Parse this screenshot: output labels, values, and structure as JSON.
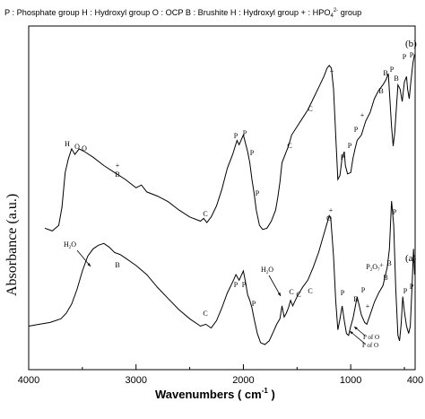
{
  "legend_text": "P : Phosphate group    H : Hydroxyl group    O : OCP    B : Brushite    H : Hydroxyl group + : HPO",
  "legend_sub": "4",
  "legend_sup": "2-",
  "legend_tail": " group",
  "chart_data": {
    "type": "line",
    "xlabel": "Wavenumbers ( cm",
    "xlabel_sup": "-1",
    "xlabel_tail": " )",
    "ylabel": "Absorbance (a.u.)",
    "xlim": [
      4000,
      400
    ],
    "x_ticks": [
      4000,
      3000,
      2000,
      1000,
      400
    ],
    "x_tick_labels": [
      "4000",
      "3000",
      "2000",
      "1000",
      "400"
    ],
    "series": [
      {
        "name": "(b)",
        "points": [
          [
            3850,
            0.05
          ],
          [
            3780,
            0.03
          ],
          [
            3720,
            0.07
          ],
          [
            3690,
            0.2
          ],
          [
            3660,
            0.45
          ],
          [
            3630,
            0.55
          ],
          [
            3600,
            0.62
          ],
          [
            3570,
            0.58
          ],
          [
            3530,
            0.62
          ],
          [
            3480,
            0.6
          ],
          [
            3400,
            0.56
          ],
          [
            3300,
            0.5
          ],
          [
            3200,
            0.45
          ],
          [
            3100,
            0.4
          ],
          [
            3000,
            0.34
          ],
          [
            2950,
            0.36
          ],
          [
            2900,
            0.31
          ],
          [
            2800,
            0.28
          ],
          [
            2700,
            0.24
          ],
          [
            2600,
            0.18
          ],
          [
            2500,
            0.13
          ],
          [
            2400,
            0.1
          ],
          [
            2370,
            0.12
          ],
          [
            2340,
            0.09
          ],
          [
            2300,
            0.13
          ],
          [
            2250,
            0.21
          ],
          [
            2200,
            0.33
          ],
          [
            2150,
            0.48
          ],
          [
            2100,
            0.58
          ],
          [
            2060,
            0.68
          ],
          [
            2040,
            0.65
          ],
          [
            2000,
            0.72
          ],
          [
            1980,
            0.66
          ],
          [
            1960,
            0.6
          ],
          [
            1940,
            0.52
          ],
          [
            1920,
            0.4
          ],
          [
            1900,
            0.3
          ],
          [
            1880,
            0.18
          ],
          [
            1850,
            0.07
          ],
          [
            1820,
            0.04
          ],
          [
            1780,
            0.05
          ],
          [
            1740,
            0.1
          ],
          [
            1700,
            0.18
          ],
          [
            1680,
            0.27
          ],
          [
            1660,
            0.38
          ],
          [
            1640,
            0.52
          ],
          [
            1610,
            0.58
          ],
          [
            1580,
            0.64
          ],
          [
            1550,
            0.72
          ],
          [
            1500,
            0.78
          ],
          [
            1450,
            0.84
          ],
          [
            1400,
            0.9
          ],
          [
            1350,
            0.98
          ],
          [
            1300,
            1.06
          ],
          [
            1250,
            1.14
          ],
          [
            1220,
            1.2
          ],
          [
            1200,
            1.22
          ],
          [
            1180,
            1.2
          ],
          [
            1160,
            1.05
          ],
          [
            1140,
            0.72
          ],
          [
            1120,
            0.4
          ],
          [
            1100,
            0.43
          ],
          [
            1080,
            0.56
          ],
          [
            1060,
            0.6
          ],
          [
            1050,
            0.5
          ],
          [
            1030,
            0.44
          ],
          [
            1000,
            0.45
          ],
          [
            980,
            0.55
          ],
          [
            960,
            0.62
          ],
          [
            940,
            0.68
          ],
          [
            900,
            0.72
          ],
          [
            860,
            0.82
          ],
          [
            820,
            0.88
          ],
          [
            780,
            0.98
          ],
          [
            740,
            1.04
          ],
          [
            700,
            1.08
          ],
          [
            670,
            1.12
          ],
          [
            650,
            1.16
          ],
          [
            620,
            0.78
          ],
          [
            605,
            0.64
          ],
          [
            590,
            0.74
          ],
          [
            560,
            1.08
          ],
          [
            540,
            1.05
          ],
          [
            520,
            0.96
          ],
          [
            500,
            1.1
          ],
          [
            480,
            1.14
          ],
          [
            470,
            1.05
          ],
          [
            455,
            0.98
          ],
          [
            440,
            1.1
          ],
          [
            420,
            1.24
          ],
          [
            405,
            1.3
          ]
        ]
      },
      {
        "name": "(a)",
        "points": [
          [
            4000,
            0.1
          ],
          [
            3900,
            0.11
          ],
          [
            3800,
            0.12
          ],
          [
            3700,
            0.14
          ],
          [
            3650,
            0.17
          ],
          [
            3600,
            0.22
          ],
          [
            3550,
            0.3
          ],
          [
            3500,
            0.4
          ],
          [
            3450,
            0.48
          ],
          [
            3400,
            0.52
          ],
          [
            3350,
            0.54
          ],
          [
            3300,
            0.55
          ],
          [
            3250,
            0.53
          ],
          [
            3200,
            0.5
          ],
          [
            3150,
            0.49
          ],
          [
            3100,
            0.47
          ],
          [
            3000,
            0.43
          ],
          [
            2900,
            0.38
          ],
          [
            2800,
            0.31
          ],
          [
            2700,
            0.25
          ],
          [
            2600,
            0.19
          ],
          [
            2500,
            0.14
          ],
          [
            2400,
            0.1
          ],
          [
            2350,
            0.11
          ],
          [
            2300,
            0.09
          ],
          [
            2250,
            0.13
          ],
          [
            2200,
            0.2
          ],
          [
            2150,
            0.28
          ],
          [
            2100,
            0.34
          ],
          [
            2070,
            0.38
          ],
          [
            2040,
            0.35
          ],
          [
            2000,
            0.4
          ],
          [
            1980,
            0.34
          ],
          [
            1960,
            0.27
          ],
          [
            1940,
            0.24
          ],
          [
            1920,
            0.2
          ],
          [
            1900,
            0.14
          ],
          [
            1870,
            0.06
          ],
          [
            1840,
            0.01
          ],
          [
            1800,
            0.0
          ],
          [
            1760,
            0.02
          ],
          [
            1720,
            0.07
          ],
          [
            1690,
            0.11
          ],
          [
            1660,
            0.14
          ],
          [
            1640,
            0.21
          ],
          [
            1620,
            0.15
          ],
          [
            1600,
            0.17
          ],
          [
            1580,
            0.2
          ],
          [
            1560,
            0.24
          ],
          [
            1540,
            0.21
          ],
          [
            1500,
            0.26
          ],
          [
            1450,
            0.31
          ],
          [
            1400,
            0.35
          ],
          [
            1350,
            0.42
          ],
          [
            1300,
            0.5
          ],
          [
            1250,
            0.6
          ],
          [
            1220,
            0.66
          ],
          [
            1200,
            0.7
          ],
          [
            1185,
            0.68
          ],
          [
            1160,
            0.48
          ],
          [
            1140,
            0.24
          ],
          [
            1120,
            0.08
          ],
          [
            1100,
            0.14
          ],
          [
            1080,
            0.21
          ],
          [
            1060,
            0.13
          ],
          [
            1040,
            0.06
          ],
          [
            1020,
            0.05
          ],
          [
            1000,
            0.1
          ],
          [
            980,
            0.14
          ],
          [
            960,
            0.2
          ],
          [
            940,
            0.26
          ],
          [
            920,
            0.21
          ],
          [
            900,
            0.16
          ],
          [
            870,
            0.12
          ],
          [
            850,
            0.11
          ],
          [
            820,
            0.16
          ],
          [
            780,
            0.23
          ],
          [
            740,
            0.28
          ],
          [
            700,
            0.32
          ],
          [
            660,
            0.42
          ],
          [
            640,
            0.52
          ],
          [
            620,
            0.78
          ],
          [
            600,
            0.65
          ],
          [
            580,
            0.3
          ],
          [
            560,
            0.05
          ],
          [
            545,
            0.02
          ],
          [
            530,
            0.11
          ],
          [
            515,
            0.26
          ],
          [
            500,
            0.18
          ],
          [
            480,
            0.1
          ],
          [
            460,
            0.06
          ],
          [
            445,
            0.1
          ],
          [
            430,
            0.3
          ],
          [
            415,
            0.52
          ],
          [
            405,
            0.38
          ]
        ]
      }
    ],
    "series_labels": [
      "(b)",
      "(a)"
    ],
    "annotations": {
      "b": [
        {
          "x": 3660,
          "text": "H"
        },
        {
          "x": 3590,
          "text": "O"
        },
        {
          "x": 3530,
          "text": "O"
        },
        {
          "x": 2950,
          "text": "+"
        },
        {
          "x": 2950,
          "text": "B"
        },
        {
          "x": 2370,
          "text": "C"
        },
        {
          "x": 2060,
          "text": "P"
        },
        {
          "x": 2010,
          "text": "P"
        },
        {
          "x": 1960,
          "text": "P"
        },
        {
          "x": 1880,
          "text": "P"
        },
        {
          "x": 1600,
          "text": "C"
        },
        {
          "x": 1400,
          "text": "C"
        },
        {
          "x": 1195,
          "text": "+"
        },
        {
          "x": 1100,
          "text": "P"
        },
        {
          "x": 1060,
          "text": "P"
        },
        {
          "x": 960,
          "text": "P"
        },
        {
          "x": 870,
          "text": "+"
        },
        {
          "x": 700,
          "text": "B"
        },
        {
          "x": 620,
          "text": "B"
        },
        {
          "x": 580,
          "text": "P"
        },
        {
          "x": 520,
          "text": "B"
        },
        {
          "x": 450,
          "text": "P"
        },
        {
          "x": 420,
          "text": "P"
        }
      ],
      "a": [
        {
          "text": "H",
          "sub": "2",
          "tail": "O"
        },
        {
          "text": "B"
        },
        {
          "text": "C"
        },
        {
          "text": "P"
        },
        {
          "text": "P"
        },
        {
          "text": "P"
        },
        {
          "text": "H",
          "sub": "2",
          "tail": "O"
        },
        {
          "text": "C"
        },
        {
          "text": "C"
        },
        {
          "text": "C"
        },
        {
          "text": "O"
        },
        {
          "text": "+"
        },
        {
          "text": "P"
        },
        {
          "text": "B"
        },
        {
          "text": "P"
        },
        {
          "text": "+"
        },
        {
          "text": "P",
          "sub": "2",
          "tail": "O",
          "sup": "4-",
          "tail2": "7"
        },
        {
          "text": "B"
        },
        {
          "text": "B"
        },
        {
          "text": "P"
        },
        {
          "text": "P"
        },
        {
          "text": "P"
        },
        {
          "text": "P of O"
        },
        {
          "text": "P of O"
        }
      ]
    }
  }
}
